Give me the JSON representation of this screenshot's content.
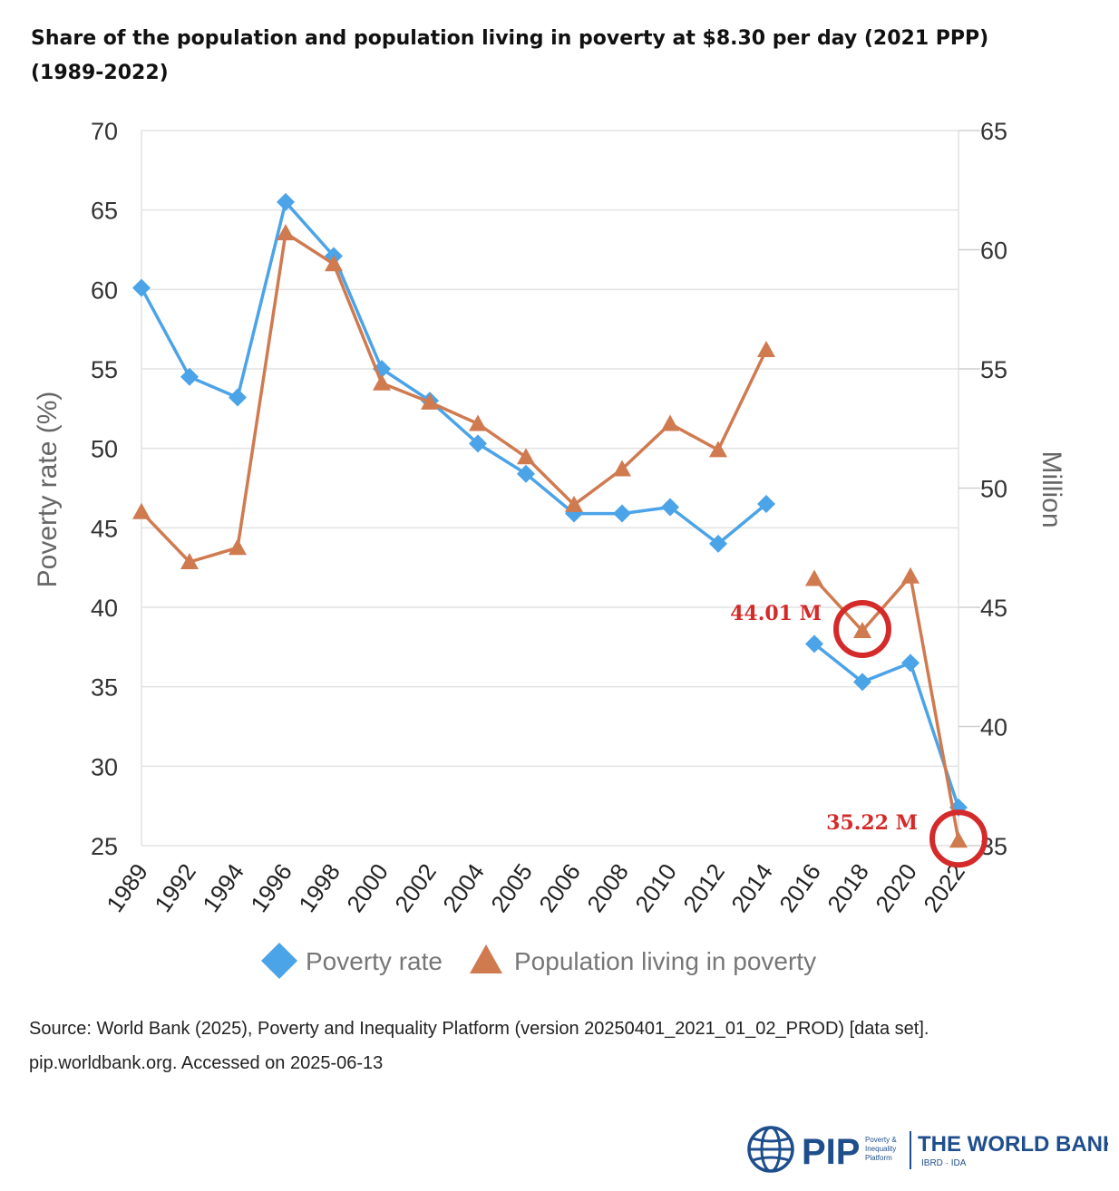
{
  "title_line1": "Share of the population and population living in poverty at $8.30 per day (2021 PPP)",
  "title_line2": "(1989-2022)",
  "source_line1": "Source: World Bank (2025), Poverty and Inequality Platform (version 20250401_2021_01_02_PROD) [data set].",
  "source_line2": "pip.worldbank.org. Accessed on 2025-06-13",
  "logo": {
    "pip_text": "PIP",
    "pip_sub": [
      "Poverty &",
      "Inequality",
      "Platform"
    ],
    "wb_text": "THE WORLD BANK",
    "wb_sub": "IBRD · IDA"
  },
  "colors": {
    "poverty_rate": "#4ba3e8",
    "population": "#d07a50",
    "annotation": "#d42a2a",
    "axis_text": "#666666"
  },
  "chart_data": {
    "type": "line",
    "categories": [
      "1989",
      "1992",
      "1994",
      "1996",
      "1998",
      "2000",
      "2002",
      "2004",
      "2005",
      "2006",
      "2008",
      "2010",
      "2012",
      "2014",
      "2016",
      "2018",
      "2020",
      "2022"
    ],
    "ylabel": "Poverty rate (%)",
    "y2label": "Million",
    "ylim": [
      25,
      70
    ],
    "y2lim": [
      35,
      65
    ],
    "yticks": [
      25,
      30,
      35,
      40,
      45,
      50,
      55,
      60,
      65,
      70
    ],
    "y2ticks": [
      35,
      40,
      45,
      50,
      55,
      60,
      65
    ],
    "grid": true,
    "legend_position": "bottom",
    "series": [
      {
        "name": "Poverty rate",
        "axis": "left",
        "marker": "diamond",
        "values": [
          60.1,
          54.5,
          53.2,
          65.5,
          62.1,
          55.0,
          53.0,
          50.3,
          48.4,
          45.9,
          45.9,
          46.3,
          44.0,
          46.5,
          37.7,
          35.3,
          36.5,
          27.4
        ],
        "breaks_after": [
          "2014"
        ]
      },
      {
        "name": "Population living in poverty",
        "axis": "right",
        "marker": "triangle",
        "values": [
          49.0,
          46.9,
          47.5,
          60.7,
          59.4,
          54.4,
          53.6,
          52.7,
          51.3,
          49.3,
          50.8,
          52.7,
          51.6,
          55.8,
          46.2,
          44.01,
          46.3,
          35.22
        ],
        "breaks_after": [
          "2014"
        ]
      }
    ],
    "annotations": [
      {
        "text": "44.01 M",
        "category": "2018",
        "series": 1
      },
      {
        "text": "35.22 M",
        "category": "2022",
        "series": 1
      }
    ]
  }
}
